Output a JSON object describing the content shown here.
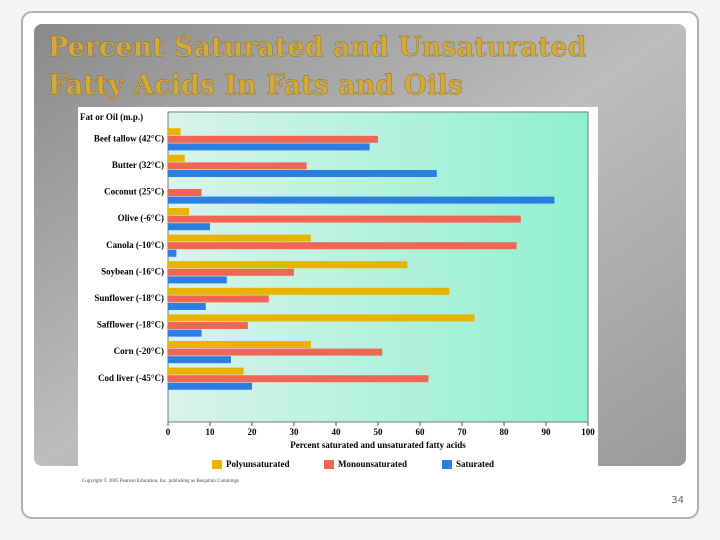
{
  "slide": {
    "title": "Percent Saturated and Unsaturated Fatty Acids In Fats and Oils",
    "copyright": "Copyright © 2005 Pearson Education, Inc.  publishing as Benjamin Cummings",
    "page_number": "34"
  },
  "chart_data": {
    "type": "bar",
    "orientation": "horizontal",
    "category_header": "Fat or Oil (m.p.)",
    "x_label": "Percent saturated and unsaturated fatty acids",
    "categories": [
      "Beef tallow (42°C)",
      "Butter (32°C)",
      "Coconut (25°C)",
      "Olive (-6°C)",
      "Canola (-10°C)",
      "Soybean (-16°C)",
      "Sunflower (-18°C)",
      "Safflower (-18°C)",
      "Corn (-20°C)",
      "Cod liver (-45°C)"
    ],
    "series": [
      {
        "name": "Polyunsaturated",
        "color": "#e8b400",
        "values": [
          3,
          4,
          null,
          5,
          34,
          57,
          67,
          73,
          34,
          18
        ]
      },
      {
        "name": "Monounsaturated",
        "color": "#f06655",
        "values": [
          50,
          33,
          8,
          84,
          83,
          30,
          24,
          19,
          51,
          62
        ]
      },
      {
        "name": "Saturated",
        "color": "#2b7fe3",
        "values": [
          48,
          64,
          92,
          10,
          2,
          14,
          9,
          8,
          15,
          20
        ]
      }
    ],
    "xlim": [
      0,
      100
    ],
    "xticks": [
      0,
      10,
      20,
      30,
      40,
      50,
      60,
      70,
      80,
      90,
      100
    ]
  }
}
